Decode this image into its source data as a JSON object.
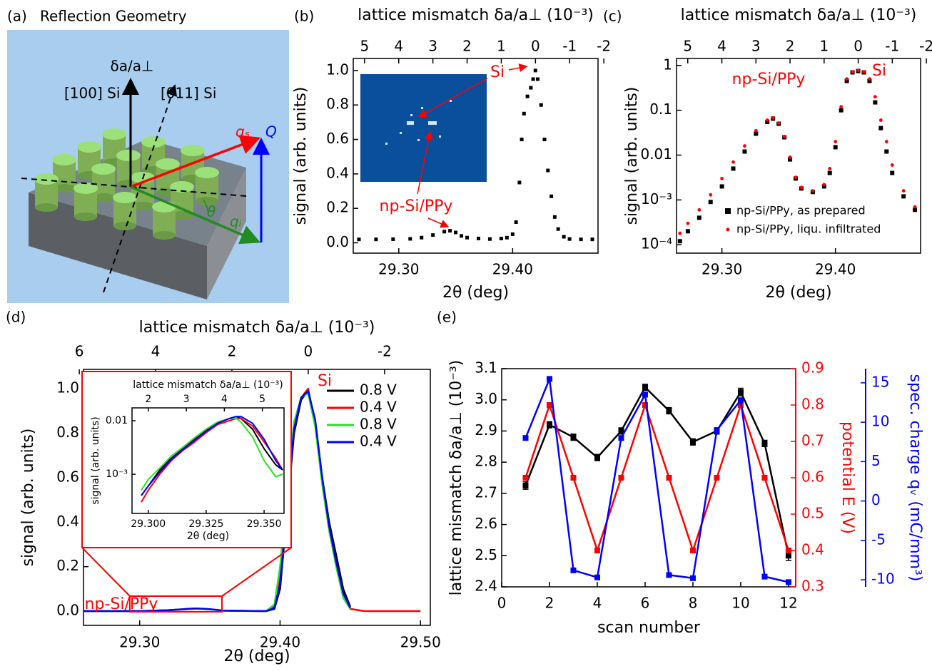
{
  "diagram": {
    "panel": "(a)",
    "title": "Reflection Geometry",
    "labels": {
      "delta": "δa/a⊥",
      "dir100": "[100] Si",
      "dir011": "[011] Si",
      "qs": "qₛ",
      "Q": "Q",
      "qi": "qᵢ",
      "theta": "θ"
    }
  },
  "chart_data": [
    {
      "type": "scatter",
      "panel": "(b)",
      "xlabel": "2θ (deg)",
      "ylabel": "signal (arb. units)",
      "x2label": "lattice mismatch δa/a⊥ (10⁻³)",
      "xlim": [
        29.26,
        29.475
      ],
      "xticks": [
        {
          "value": 29.3,
          "label": "29.30"
        },
        {
          "value": 29.4,
          "label": "29.40"
        }
      ],
      "x2lim": [
        5.33,
        -1.83
      ],
      "x2ticks": [
        5,
        4,
        3,
        2,
        1,
        0,
        -1,
        -2
      ],
      "ylim": [
        -0.06,
        1.07
      ],
      "yticks": [
        {
          "value": 0,
          "label": "0.0"
        },
        0.2,
        0.4,
        0.6,
        0.8,
        {
          "value": 1,
          "label": "1.0"
        }
      ],
      "x": [
        29.265,
        29.28,
        29.295,
        29.31,
        29.32,
        29.33,
        29.34,
        29.345,
        29.35,
        29.355,
        29.36,
        29.37,
        29.38,
        29.39,
        29.395,
        29.4,
        29.403,
        29.406,
        29.408,
        29.41,
        29.413,
        29.416,
        29.418,
        29.42,
        29.422,
        29.425,
        29.428,
        29.431,
        29.434,
        29.437,
        29.44,
        29.445,
        29.45,
        29.46,
        29.47
      ],
      "series": [
        {
          "color": "#000000",
          "marker": "square",
          "values": [
            0.02,
            0.02,
            0.021,
            0.023,
            0.03,
            0.045,
            0.065,
            0.07,
            0.06,
            0.04,
            0.03,
            0.025,
            0.022,
            0.025,
            0.03,
            0.05,
            0.12,
            0.35,
            0.6,
            0.75,
            0.85,
            0.9,
            0.95,
            1.0,
            0.95,
            0.8,
            0.6,
            0.42,
            0.27,
            0.15,
            0.08,
            0.035,
            0.022,
            0.02,
            0.02
          ]
        }
      ],
      "annotations": [
        "Si",
        "np-Si/PPy"
      ]
    },
    {
      "type": "scatter",
      "panel": "(c)",
      "log_y": true,
      "xlabel": "2θ (deg)",
      "ylabel": "signal (arb. units)",
      "x2label": "lattice mismatch δa/a⊥ (10⁻³)",
      "xlim": [
        29.26,
        29.475
      ],
      "xticks": [
        {
          "value": 29.3,
          "label": "29.30"
        },
        {
          "value": 29.4,
          "label": "29.40"
        }
      ],
      "x2lim": [
        5.33,
        -1.83
      ],
      "x2ticks": [
        5,
        4,
        3,
        2,
        1,
        0,
        -1,
        -2
      ],
      "ylim": [
        6.5e-05,
        1.43
      ],
      "yticks": [
        {
          "value": 0.0001,
          "label": "10⁻⁴"
        },
        {
          "value": 0.001,
          "label": "10⁻³"
        },
        0.01,
        0.1,
        1
      ],
      "x": [
        29.263,
        29.27,
        29.28,
        29.29,
        29.3,
        29.31,
        29.32,
        29.33,
        29.34,
        29.345,
        29.35,
        29.355,
        29.36,
        29.365,
        29.37,
        29.38,
        29.39,
        29.395,
        29.4,
        29.405,
        29.41,
        29.415,
        29.42,
        29.425,
        29.43,
        29.435,
        29.44,
        29.445,
        29.45,
        29.46,
        29.47
      ],
      "series": [
        {
          "name": "np-Si/PPy, as prepared",
          "color": "#000000",
          "marker": "square",
          "values": [
            0.00012,
            0.0002,
            0.0004,
            0.0009,
            0.002,
            0.005,
            0.012,
            0.03,
            0.055,
            0.065,
            0.05,
            0.025,
            0.008,
            0.003,
            0.0018,
            0.0015,
            0.002,
            0.004,
            0.015,
            0.1,
            0.45,
            0.7,
            0.75,
            0.7,
            0.45,
            0.15,
            0.04,
            0.012,
            0.004,
            0.0012,
            0.0006
          ]
        },
        {
          "name": "np-Si/PPy, liqu. infiltrated",
          "color": "#ff0000",
          "marker": "circle",
          "values": [
            0.00018,
            0.0003,
            0.0006,
            0.0013,
            0.003,
            0.007,
            0.016,
            0.035,
            0.06,
            0.068,
            0.052,
            0.026,
            0.009,
            0.0032,
            0.0019,
            0.0016,
            0.0022,
            0.005,
            0.02,
            0.12,
            0.5,
            0.72,
            0.78,
            0.72,
            0.5,
            0.2,
            0.06,
            0.02,
            0.006,
            0.0016,
            0.0007
          ]
        }
      ],
      "legend": "lower right",
      "annotations": [
        "np-Si/PPy",
        "Si"
      ]
    },
    {
      "type": "line",
      "panel": "(d)",
      "xlabel": "2θ (deg)",
      "ylabel": "signal (arb. units)",
      "x2label": "lattice mismatch δa/a⊥ (10⁻³)",
      "xlim": [
        29.26,
        29.507
      ],
      "xticks": [
        {
          "value": 29.3,
          "label": "29.30"
        },
        {
          "value": 29.4,
          "label": "29.40"
        },
        {
          "value": 29.5,
          "label": "29.50"
        }
      ],
      "x2lim": [
        5.89,
        -3.2
      ],
      "x2ticks": [
        6,
        4,
        2,
        0,
        -2
      ],
      "ylim": [
        -0.064,
        1.087
      ],
      "yticks": [
        {
          "value": 0,
          "label": "0.0"
        },
        0.2,
        0.4,
        0.6,
        0.8,
        {
          "value": 1,
          "label": "1.0"
        }
      ],
      "x": [
        29.26,
        29.3,
        29.32,
        29.33,
        29.335,
        29.34,
        29.345,
        29.35,
        29.36,
        29.39,
        29.396,
        29.4,
        29.405,
        29.41,
        29.415,
        29.42,
        29.425,
        29.43,
        29.435,
        29.44,
        29.445,
        29.45,
        29.46,
        29.5
      ],
      "series": [
        {
          "name": "0.8 V",
          "color": "#000000",
          "values": [
            0,
            0,
            0.004,
            0.008,
            0.01,
            0.011,
            0.01,
            0.008,
            0.002,
            0,
            0.01,
            0.1,
            0.45,
            0.8,
            0.95,
            0.99,
            0.85,
            0.6,
            0.4,
            0.25,
            0.1,
            0.02,
            null,
            null
          ]
        },
        {
          "name": "0.4 V",
          "color": "#ff0000",
          "values": [
            0,
            0,
            0.003,
            0.007,
            0.009,
            0.01,
            0.01,
            0.008,
            0.002,
            0,
            0.02,
            0.15,
            0.5,
            0.82,
            0.96,
            1.0,
            0.84,
            0.58,
            0.37,
            0.2,
            0.07,
            0.01,
            0,
            0
          ]
        },
        {
          "name": "0.8 V",
          "color": "#22e622",
          "values": [
            0,
            0,
            0.004,
            0.008,
            0.01,
            0.011,
            0.009,
            0.007,
            0.002,
            0,
            0.03,
            0.2,
            0.55,
            0.85,
            0.96,
            0.98,
            0.83,
            0.57,
            0.36,
            0.2,
            0.06,
            0.01,
            null,
            null
          ]
        },
        {
          "name": "0.4 V",
          "color": "#0000ff",
          "values": [
            0,
            0,
            0.004,
            0.008,
            0.011,
            0.012,
            0.011,
            0.009,
            0.002,
            0,
            0.015,
            0.12,
            0.48,
            0.82,
            0.96,
            0.99,
            0.86,
            0.6,
            0.38,
            0.22,
            0.08,
            0.015,
            null,
            null
          ]
        }
      ],
      "legend": "upper right",
      "annotations": [
        "Si",
        "np-Si/PPy"
      ],
      "inset": {
        "type": "line",
        "log_y": true,
        "xlabel": "2θ (deg)",
        "ylabel": "signal (arb. units)",
        "x2label": "lattice mismatch δa/a⊥ (10⁻³)",
        "xlim": [
          29.293,
          29.3586
        ],
        "xticks": [
          {
            "value": 29.3,
            "label": "29.300"
          },
          {
            "value": 29.325,
            "label": "29.325"
          },
          {
            "value": 29.35,
            "label": "29.350"
          }
        ],
        "x2lim": [
          1.57,
          5.57
        ],
        "x2ticks": [
          2,
          3,
          4,
          5
        ],
        "ylim": [
          0.000185,
          0.0174
        ],
        "yticks": [
          {
            "value": 0.001,
            "label": "10⁻³"
          },
          0.01
        ],
        "x": [
          29.297,
          29.3,
          29.305,
          29.31,
          29.315,
          29.32,
          29.325,
          29.33,
          29.335,
          29.338,
          29.34,
          29.345,
          29.35,
          29.355,
          29.358
        ],
        "series": [
          {
            "color": "#000000",
            "values": [
              0.0004,
              0.0006,
              0.0012,
              0.002,
              0.003,
              0.0045,
              0.0065,
              0.009,
              0.011,
              0.012,
              0.011,
              0.007,
              0.003,
              0.0015,
              0.0012
            ]
          },
          {
            "color": "#ff0000",
            "values": [
              0.0003,
              0.0005,
              0.001,
              0.0018,
              0.0028,
              0.004,
              0.006,
              0.0085,
              0.01,
              0.011,
              0.011,
              0.008,
              0.004,
              0.002,
              0.0012
            ]
          },
          {
            "color": "#22e622",
            "values": [
              0.0005,
              0.0008,
              0.0013,
              0.0022,
              0.0032,
              0.0048,
              0.007,
              0.0095,
              0.011,
              0.011,
              0.0095,
              0.005,
              0.0018,
              0.0009,
              0.001
            ]
          },
          {
            "color": "#0000ff",
            "values": [
              0.0004,
              0.0006,
              0.0011,
              0.0019,
              0.0029,
              0.0043,
              0.0063,
              0.009,
              0.011,
              0.012,
              0.012,
              0.009,
              0.0045,
              0.0018,
              0.0012
            ]
          }
        ]
      }
    },
    {
      "type": "line",
      "panel": "(e)",
      "xlabel": "scan number",
      "ylabel": "lattice mismatch δa/a⊥ (10⁻³)",
      "y2label": "potential E (V)",
      "y3label": "spec. charge qᵥ (mC/mm³)",
      "xlim": [
        0,
        12.3
      ],
      "xticks": [
        0,
        2,
        4,
        6,
        8,
        10,
        12
      ],
      "ylim": [
        2.4,
        3.1
      ],
      "yticks": [
        2.4,
        2.5,
        2.6,
        2.7,
        2.8,
        2.9,
        {
          "value": 3,
          "label": "3.0"
        },
        3.1
      ],
      "y2lim": [
        0.3,
        0.9
      ],
      "y2ticks": [
        0.3,
        0.4,
        0.5,
        0.6,
        0.7,
        0.8,
        0.9
      ],
      "y3lim": [
        -10.9,
        16.8
      ],
      "y3ticks": [
        -10,
        -5,
        0,
        5,
        10,
        15
      ],
      "x": [
        1,
        2,
        3,
        4,
        5,
        6,
        7,
        8,
        9,
        10,
        11,
        12
      ],
      "series": [
        {
          "color": "#000000",
          "marker": "square",
          "values": [
            2.725,
            2.92,
            2.88,
            2.815,
            2.9,
            3.04,
            2.965,
            2.865,
            2.9,
            3.025,
            2.86,
            2.5
          ],
          "errors": [
            0.012,
            0.01,
            0.01,
            0.01,
            0.01,
            0.01,
            0.01,
            0.01,
            0.01,
            0.012,
            0.01,
            0.015
          ]
        },
        {
          "color": "#ff0000",
          "marker": "square",
          "axis": "y2",
          "values": [
            0.6,
            0.8,
            0.6,
            0.4,
            0.6,
            0.8,
            0.6,
            0.4,
            0.6,
            0.8,
            0.6,
            0.4
          ]
        },
        {
          "color": "#0000ff",
          "marker": "square",
          "axis": "y3",
          "values": [
            8,
            15.5,
            -8.8,
            -9.7,
            8,
            13.5,
            -9.4,
            -9.8,
            9,
            12.8,
            -9.6,
            -10.3
          ]
        }
      ]
    }
  ]
}
